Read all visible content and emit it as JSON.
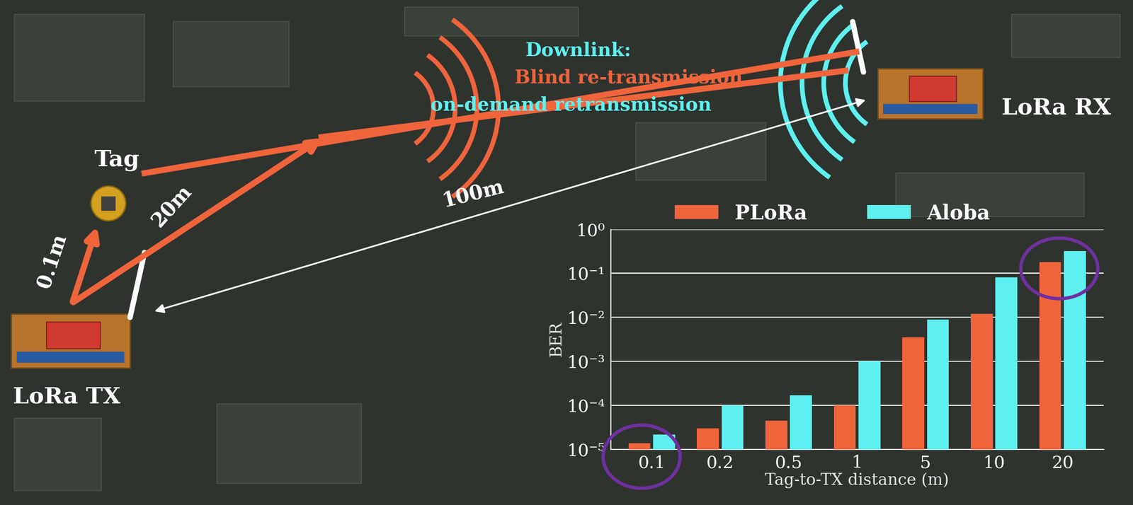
{
  "chart_data": {
    "type": "bar",
    "x_label": "Tag-to-TX distance (m)",
    "y_label": "BER",
    "categories": [
      "0.1",
      "0.2",
      "0.5",
      "1",
      "5",
      "10",
      "20"
    ],
    "series": [
      {
        "name": "PLoRa",
        "color": "#f0643c",
        "values": [
          1.4e-05,
          3e-05,
          4.5e-05,
          0.0001,
          0.0035,
          0.012,
          0.18
        ]
      },
      {
        "name": "Aloba",
        "color": "#5ef0f0",
        "values": [
          2.2e-05,
          0.0001,
          0.00017,
          0.001,
          0.009,
          0.08,
          0.32
        ]
      }
    ],
    "log": "y",
    "ylim": [
      1e-05,
      1
    ],
    "yticks": [
      {
        "value": 1e-05,
        "label": "10⁻⁵"
      },
      {
        "value": 0.0001,
        "label": "10⁻⁴"
      },
      {
        "value": 0.001,
        "label": "10⁻³"
      },
      {
        "value": 0.01,
        "label": "10⁻²"
      },
      {
        "value": 0.1,
        "label": "10⁻¹"
      },
      {
        "value": 1,
        "label": "10⁰"
      }
    ],
    "grid": true,
    "legend": "upper center",
    "annotations": [
      "Tag",
      "LoRa TX",
      "LoRa RX",
      "0.1m",
      "20m",
      "100m",
      "Downlink:",
      "Blind re-transmission",
      "on-demand retransmission"
    ]
  }
}
